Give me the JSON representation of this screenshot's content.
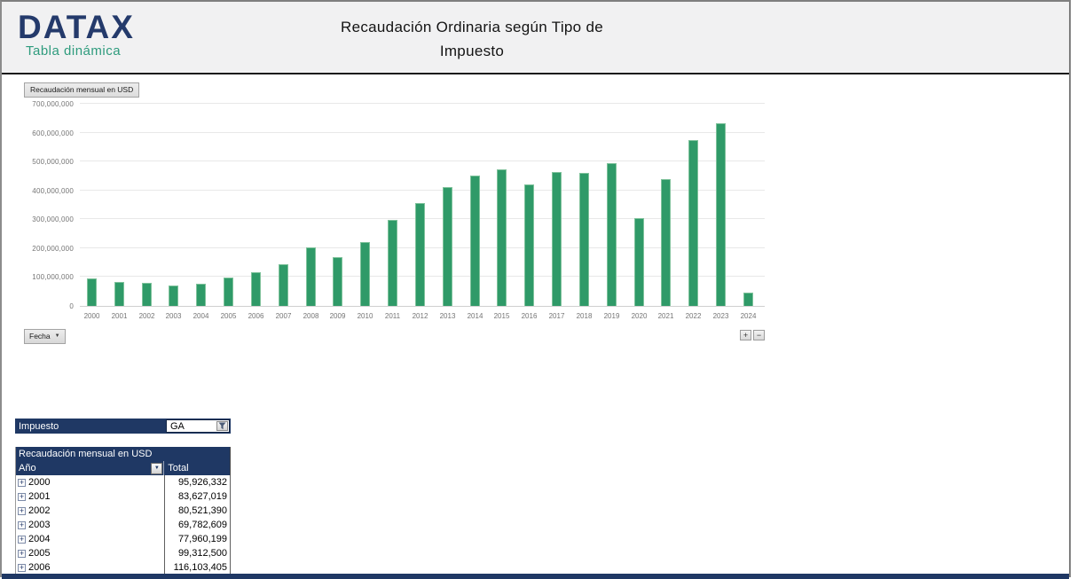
{
  "header": {
    "brand": "DATAX",
    "tagline": "Tabla dinámica",
    "title_line1": "Recaudación Ordinaria según Tipo de",
    "title_line2": "Impuesto"
  },
  "chart": {
    "field_button_label": "Recaudación mensual en USD",
    "axis_field_label": "Fecha",
    "axis_field_arrow": "▼",
    "expand_label": "+",
    "collapse_label": "−"
  },
  "chart_data": {
    "type": "bar",
    "title": "Recaudación mensual en USD",
    "categories": [
      "2000",
      "2001",
      "2002",
      "2003",
      "2004",
      "2005",
      "2006",
      "2007",
      "2008",
      "2009",
      "2010",
      "2011",
      "2012",
      "2013",
      "2014",
      "2015",
      "2016",
      "2017",
      "2018",
      "2019",
      "2020",
      "2021",
      "2022",
      "2023",
      "2024"
    ],
    "values": [
      95926332,
      83627019,
      80521390,
      69782609,
      77960199,
      99312500,
      116103405,
      145000000,
      203000000,
      170000000,
      220000000,
      298000000,
      357000000,
      412000000,
      452000000,
      473000000,
      421000000,
      463000000,
      462000000,
      493000000,
      303000000,
      438000000,
      575000000,
      633000000,
      45000000
    ],
    "ylim": [
      0,
      700000000
    ],
    "ytick_labels": [
      "0",
      "100,000,000",
      "200,000,000",
      "300,000,000",
      "400,000,000",
      "500,000,000",
      "600,000,000",
      "700,000,000"
    ],
    "xlabel": "",
    "ylabel": "",
    "grid": true,
    "legend_position": "none",
    "bar_color": "#2F9A68"
  },
  "filter": {
    "label": "Impuesto",
    "value": "GA"
  },
  "pivot": {
    "values_header": "Recaudación mensual en USD",
    "row_field": "Año",
    "row_field_arrow": "▼",
    "col_header": "Total",
    "expand_glyph": "+",
    "rows": [
      {
        "year": "2000",
        "total": "95,926,332"
      },
      {
        "year": "2001",
        "total": "83,627,019"
      },
      {
        "year": "2002",
        "total": "80,521,390"
      },
      {
        "year": "2003",
        "total": "69,782,609"
      },
      {
        "year": "2004",
        "total": "77,960,199"
      },
      {
        "year": "2005",
        "total": "99,312,500"
      },
      {
        "year": "2006",
        "total": "116,103,405"
      }
    ]
  },
  "colors": {
    "navy": "#1F3864",
    "bar_green": "#2F9A68",
    "logo_navy": "#243A6B",
    "tagline_teal": "#2E9B7D",
    "header_band": "#F1F1F2"
  }
}
